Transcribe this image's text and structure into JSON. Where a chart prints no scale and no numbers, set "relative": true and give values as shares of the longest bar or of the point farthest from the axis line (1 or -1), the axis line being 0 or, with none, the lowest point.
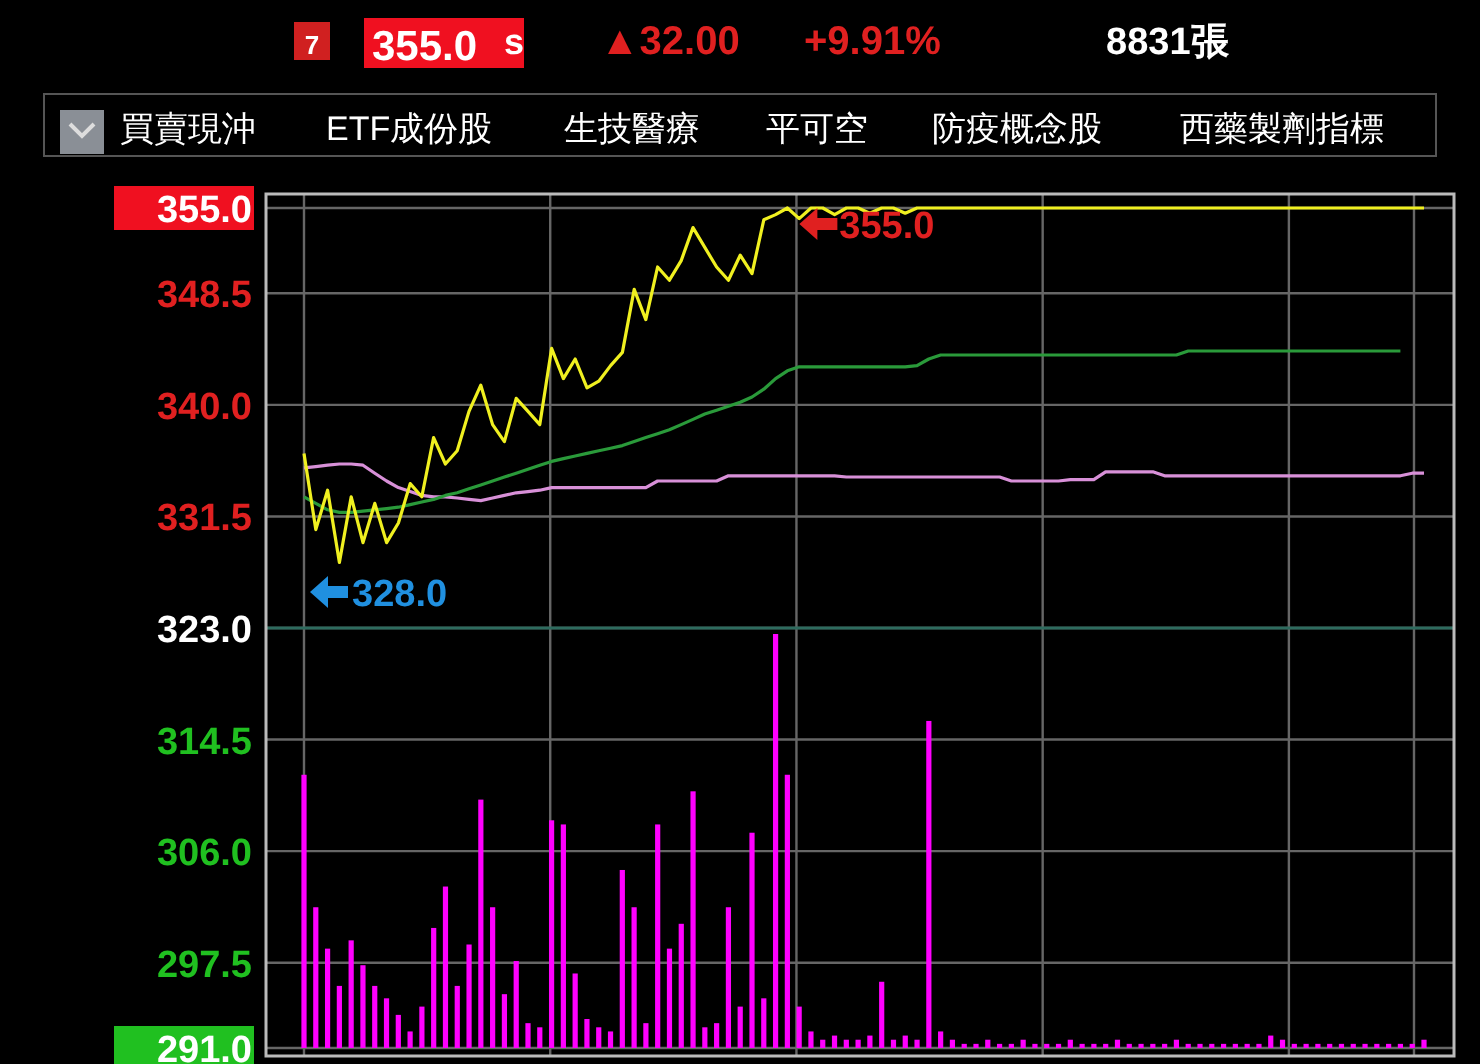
{
  "chart_data": [
    {
      "type": "line",
      "title": "355.0",
      "annotations": [
        "7",
        "s",
        "▲32.00",
        "+9.91%",
        "8831張",
        "買賣現沖",
        "ETF成份股",
        "生技醫療",
        "平可空",
        "防疫概念股",
        "西藥製劑指標",
        {
          "text": "355.0",
          "y": 355
        },
        "328.0"
      ],
      "categories": [
        null,
        null,
        null,
        null,
        null,
        null,
        null,
        null,
        null,
        null,
        null,
        null,
        null,
        null,
        null,
        null,
        null,
        null,
        null,
        null,
        null,
        null,
        null,
        null,
        null,
        null,
        null,
        null,
        null,
        null,
        null,
        null,
        null,
        null,
        null,
        null,
        null,
        null,
        null,
        null,
        null,
        null,
        null,
        null,
        null,
        null,
        null,
        null,
        null,
        null,
        null,
        null,
        null,
        null,
        null,
        null,
        null,
        null,
        null,
        null,
        null,
        null,
        null,
        null,
        null,
        null,
        null,
        null,
        null,
        null,
        null,
        null,
        null,
        null,
        null,
        null,
        null,
        null,
        null,
        null,
        null,
        null,
        null,
        null,
        null,
        null,
        null,
        null,
        null,
        null,
        null,
        null,
        null,
        null,
        null,
        null
      ],
      "series": [
        {
          "color": "#f0f020",
          "values": [
            336.3,
            330.5,
            333.5,
            328.0,
            333,
            329.5,
            332.5,
            329.5,
            331,
            334,
            333,
            337.5,
            335.5,
            336.5,
            339.5,
            341.5,
            338.5,
            337.2,
            340.5,
            339.5,
            338.5,
            344.3,
            342,
            343.5,
            341.3,
            341.8,
            343,
            344,
            348.8,
            346.5,
            350.5,
            349.5,
            351,
            353.5,
            352,
            350.5,
            349.5,
            351.4,
            350,
            354.1,
            354.5,
            355,
            354.2,
            355,
            355,
            354.5,
            355,
            355,
            354.6,
            355,
            355,
            354.6,
            355,
            355,
            355,
            355,
            355,
            355,
            355,
            355,
            355,
            355,
            355,
            355,
            355,
            355,
            355,
            355,
            355,
            355,
            355,
            355,
            355,
            355,
            355,
            355,
            355,
            355,
            355,
            355,
            355,
            355,
            355,
            355,
            355,
            355,
            355,
            355,
            355,
            355,
            355,
            355,
            355,
            355,
            355,
            355
          ]
        },
        {
          "color": "#2a9a3a",
          "values": [
            333,
            332.5,
            332,
            331.8,
            331.8,
            331.9,
            332,
            332.1,
            332.2,
            332.4,
            332.6,
            332.8,
            333.1,
            333.3,
            333.6,
            333.9,
            334.2,
            334.5,
            334.8,
            335.1,
            335.4,
            335.7,
            335.9,
            336.1,
            336.3,
            336.5,
            336.7,
            336.9,
            337.2,
            337.5,
            337.8,
            338.1,
            338.5,
            338.9,
            339.3,
            339.6,
            339.9,
            340.2,
            340.6,
            341.2,
            342,
            342.6,
            342.9,
            342.9,
            342.9,
            342.9,
            342.9,
            342.9,
            342.9,
            342.9,
            342.9,
            342.9,
            343,
            343.5,
            343.8,
            343.8,
            343.8,
            343.8,
            343.8,
            343.8,
            343.8,
            343.8,
            343.8,
            343.8,
            343.8,
            343.8,
            343.8,
            343.8,
            343.8,
            343.8,
            343.8,
            343.8,
            343.8,
            343.8,
            343.8,
            344.1,
            344.1,
            344.1,
            344.1,
            344.1,
            344.1,
            344.1,
            344.1,
            344.1,
            344.1,
            344.1,
            344.1,
            344.1,
            344.1,
            344.1,
            344.1,
            344.1,
            344.1,
            344.1,
            null,
            null
          ]
        },
        {
          "color": "#d890d8",
          "values": [
            335.2,
            335.3,
            335.4,
            335.5,
            335.5,
            335.4,
            334.8,
            334.2,
            333.7,
            333.4,
            333.1,
            333,
            333,
            332.9,
            332.8,
            332.7,
            332.9,
            333.1,
            333.3,
            333.4,
            333.5,
            333.7,
            333.7,
            333.7,
            333.7,
            333.7,
            333.7,
            333.7,
            333.7,
            333.7,
            334.2,
            334.2,
            334.2,
            334.2,
            334.2,
            334.2,
            334.6,
            334.6,
            334.6,
            334.6,
            334.6,
            334.6,
            334.6,
            334.6,
            334.6,
            334.6,
            334.5,
            334.5,
            334.5,
            334.5,
            334.5,
            334.5,
            334.5,
            334.5,
            334.5,
            334.5,
            334.5,
            334.5,
            334.5,
            334.5,
            334.2,
            334.2,
            334.2,
            334.2,
            334.2,
            334.3,
            334.3,
            334.3,
            334.9,
            334.9,
            334.9,
            334.9,
            334.9,
            334.6,
            334.6,
            334.6,
            334.6,
            334.6,
            334.6,
            334.6,
            334.6,
            334.6,
            334.6,
            334.6,
            334.6,
            334.6,
            334.6,
            334.6,
            334.6,
            334.6,
            334.6,
            334.6,
            334.6,
            334.6,
            334.8,
            334.8
          ]
        }
      ],
      "ylim": [
        291,
        355
      ],
      "yticks": [
        {
          "value": 355,
          "label": "355.0"
        },
        {
          "value": 348.5,
          "label": "348.5"
        },
        {
          "value": 340,
          "label": "340.0"
        },
        {
          "value": 331.5,
          "label": "331.5"
        },
        {
          "value": 323,
          "label": "323.0"
        },
        {
          "value": 314.5,
          "label": "314.5"
        },
        {
          "value": 306,
          "label": "306.0"
        },
        {
          "value": 297.5,
          "label": "297.5"
        },
        {
          "value": 291,
          "label": "291.0"
        }
      ],
      "ref_lines": [
        {
          "axis": "y",
          "value": 323,
          "color": "#2e6b5e"
        }
      ],
      "grid": true,
      "line_style": "solid"
    },
    {
      "type": "bar",
      "relative": true,
      "color": "#ff00ff",
      "categories": [
        null,
        null,
        null,
        null,
        null,
        null,
        null,
        null,
        null,
        null,
        null,
        null,
        null,
        null,
        null,
        null,
        null,
        null,
        null,
        null,
        null,
        null,
        null,
        null,
        null,
        null,
        null,
        null,
        null,
        null,
        null,
        null,
        null,
        null,
        null,
        null,
        null,
        null,
        null,
        null,
        null,
        null,
        null,
        null,
        null,
        null,
        null,
        null,
        null,
        null,
        null,
        null,
        null,
        null,
        null,
        null,
        null,
        null,
        null,
        null,
        null,
        null,
        null,
        null,
        null,
        null,
        null,
        null,
        null,
        null,
        null,
        null,
        null,
        null,
        null,
        null,
        null,
        null,
        null,
        null,
        null,
        null,
        null,
        null,
        null,
        null,
        null,
        null,
        null,
        null,
        null,
        null,
        null,
        null,
        null,
        null
      ],
      "values": [
        0.66,
        0.34,
        0.24,
        0.15,
        0.26,
        0.2,
        0.15,
        0.12,
        0.08,
        0.04,
        0.1,
        0.29,
        0.39,
        0.15,
        0.25,
        0.6,
        0.34,
        0.13,
        0.21,
        0.06,
        0.05,
        0.55,
        0.54,
        0.18,
        0.07,
        0.05,
        0.04,
        0.43,
        0.34,
        0.06,
        0.54,
        0.24,
        0.3,
        0.62,
        0.05,
        0.06,
        0.34,
        0.1,
        0.52,
        0.12,
        1,
        0.66,
        0.1,
        0.04,
        0.02,
        0.03,
        0.02,
        0.02,
        0.03,
        0.16,
        0.02,
        0.03,
        0.02,
        0.79,
        0.04,
        0.02,
        0.01,
        0.01,
        0.02,
        0.01,
        0.01,
        0.02,
        0.01,
        0.01,
        0.01,
        0.02,
        0.01,
        0.01,
        0.01,
        0.02,
        0.01,
        0.01,
        0.01,
        0.01,
        0.02,
        0.01,
        0.01,
        0.01,
        0.01,
        0.01,
        0.01,
        0.01,
        0.03,
        0.02,
        0.01,
        0.01,
        0.01,
        0.01,
        0.01,
        0.01,
        0.01,
        0.01,
        0.01,
        0.01,
        0.01,
        0.02
      ]
    }
  ]
}
